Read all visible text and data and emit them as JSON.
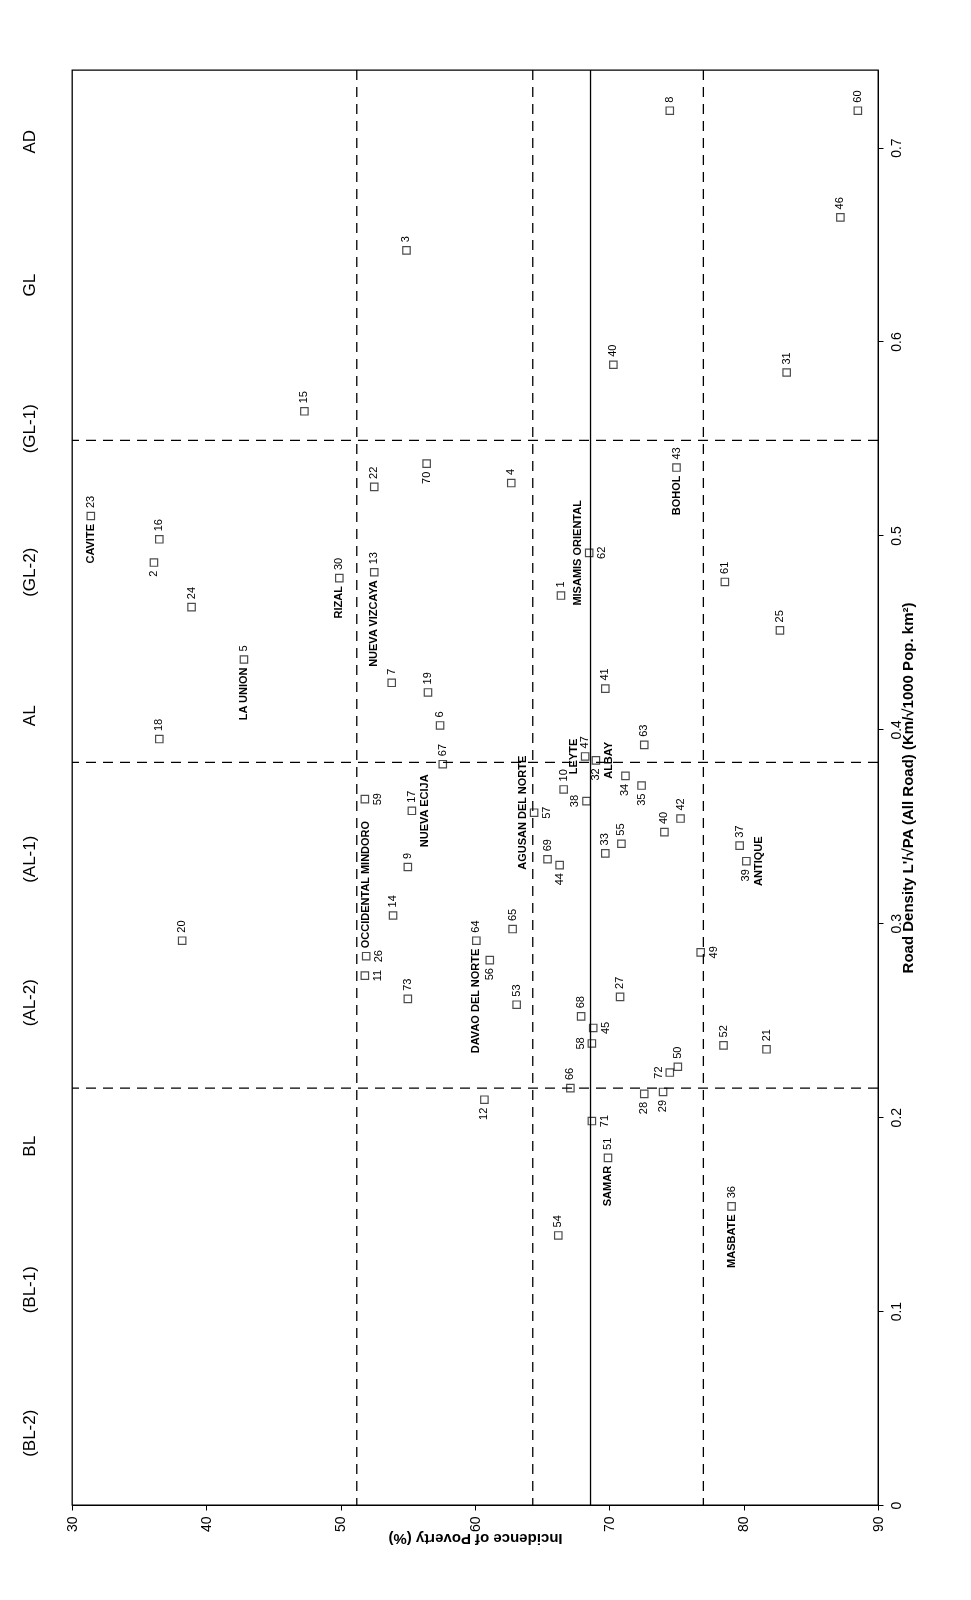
{
  "chart_data": {
    "type": "scatter",
    "xlabel": "Incidence of Poverty (%)",
    "ylabel": "Road Density L'/√PA (All Road) (Km/√1000 Pop. km²)",
    "xlim": [
      30,
      90
    ],
    "xticks": [
      30,
      40,
      50,
      60,
      70,
      80,
      90
    ],
    "ylim": [
      0,
      0.74
    ],
    "yticks": [
      0,
      0.1,
      0.2,
      0.3,
      0.4,
      0.5,
      0.6,
      0.7
    ],
    "marker": "square",
    "series": [
      {
        "color": "#000000",
        "x": [
          66.4,
          36.1,
          54.9,
          62.7,
          42.8,
          57.4,
          53.8,
          74.5,
          55.0,
          66.6,
          51.8,
          60.7,
          52.5,
          53.9,
          47.3,
          36.5,
          55.3,
          36.5,
          56.5,
          38.2,
          81.7,
          52.5,
          31.4,
          38.9,
          82.7,
          51.9,
          70.8,
          72.6,
          74.0,
          49.9,
          83.2,
          69.0,
          69.7,
          71.2,
          72.4,
          79.1,
          79.7,
          68.3,
          80.2,
          70.3,
          74.1,
          69.7,
          75.3,
          75.0,
          66.3,
          68.8,
          87.2,
          68.2,
          76.8,
          75.1,
          69.9,
          78.5,
          63.1,
          66.2,
          70.9,
          61.1,
          64.4,
          68.7,
          51.8,
          88.5,
          78.6,
          68.5,
          72.6,
          60.1,
          62.8,
          67.1,
          57.6,
          67.9,
          65.4,
          56.4,
          68.7,
          74.5,
          55.0
        ],
        "values": [
          0.469,
          0.486,
          0.647,
          0.527,
          0.436,
          0.402,
          0.424,
          0.719,
          0.329,
          0.369,
          0.273,
          0.209,
          0.481,
          0.304,
          0.564,
          0.498,
          0.358,
          0.395,
          0.419,
          0.291,
          0.235,
          0.525,
          0.51,
          0.463,
          0.451,
          0.283,
          0.262,
          0.212,
          0.213,
          0.478,
          0.584,
          0.384,
          0.336,
          0.376,
          0.371,
          0.154,
          0.34,
          0.363,
          0.332,
          0.588,
          0.347,
          0.421,
          0.354,
          0.535,
          0.33,
          0.246,
          0.664,
          0.386,
          0.285,
          0.226,
          0.179,
          0.237,
          0.258,
          0.139,
          0.341,
          0.281,
          0.357,
          0.238,
          0.364,
          0.719,
          0.476,
          0.491,
          0.392,
          0.291,
          0.297,
          0.215,
          0.382,
          0.252,
          0.333,
          0.537,
          0.198,
          0.223,
          0.261
        ]
      }
    ],
    "ref_lines": [
      {
        "axis": "x",
        "value": 51.2,
        "line_style": "dashed"
      },
      {
        "axis": "x",
        "value": 64.3,
        "line_style": "dashed"
      },
      {
        "axis": "x",
        "value": 77.0,
        "line_style": "dashed"
      },
      {
        "axis": "x",
        "value": 68.6,
        "line_style": "solid"
      },
      {
        "axis": "y",
        "value": 0.215,
        "line_style": "dashed"
      },
      {
        "axis": "y",
        "value": 0.383,
        "line_style": "dashed"
      },
      {
        "axis": "y",
        "value": 0.549,
        "line_style": "dashed"
      }
    ],
    "annotations": [
      "AD",
      "GL",
      "(GL-1)",
      "(GL-2)",
      "AL",
      "(AL-1)",
      "(AL-2)",
      "BL",
      "(BL-1)",
      "(BL-2)",
      {
        "text": "1",
        "x": 66.4,
        "y": 0.469
      },
      {
        "text": "2",
        "x": 36.1,
        "y": 0.486
      },
      {
        "text": "3",
        "x": 54.9,
        "y": 0.647
      },
      {
        "text": "4",
        "x": 62.7,
        "y": 0.527
      },
      {
        "text": "5",
        "x": 42.8,
        "y": 0.436
      },
      {
        "text": "6",
        "x": 57.4,
        "y": 0.402
      },
      {
        "text": "7",
        "x": 53.8,
        "y": 0.424
      },
      {
        "text": "8",
        "x": 74.5,
        "y": 0.719
      },
      {
        "text": "9",
        "x": 55.0,
        "y": 0.329
      },
      {
        "text": "10",
        "x": 66.6,
        "y": 0.369
      },
      {
        "text": "11",
        "x": 51.8,
        "y": 0.273
      },
      {
        "text": "12",
        "x": 60.7,
        "y": 0.209
      },
      {
        "text": "13",
        "x": 52.5,
        "y": 0.481
      },
      {
        "text": "14",
        "x": 53.9,
        "y": 0.304
      },
      {
        "text": "15",
        "x": 47.3,
        "y": 0.564
      },
      {
        "text": "16",
        "x": 36.5,
        "y": 0.498
      },
      {
        "text": "17",
        "x": 55.3,
        "y": 0.358
      },
      {
        "text": "18",
        "x": 36.5,
        "y": 0.395
      },
      {
        "text": "19",
        "x": 56.5,
        "y": 0.419
      },
      {
        "text": "20",
        "x": 38.2,
        "y": 0.291
      },
      {
        "text": "21",
        "x": 81.7,
        "y": 0.235
      },
      {
        "text": "22",
        "x": 52.5,
        "y": 0.525
      },
      {
        "text": "23",
        "x": 31.4,
        "y": 0.51
      },
      {
        "text": "24",
        "x": 38.9,
        "y": 0.463
      },
      {
        "text": "25",
        "x": 82.7,
        "y": 0.451
      },
      {
        "text": "26",
        "x": 51.9,
        "y": 0.283
      },
      {
        "text": "27",
        "x": 70.8,
        "y": 0.262
      },
      {
        "text": "28",
        "x": 72.6,
        "y": 0.212
      },
      {
        "text": "29",
        "x": 74.0,
        "y": 0.213
      },
      {
        "text": "30",
        "x": 49.9,
        "y": 0.478
      },
      {
        "text": "31",
        "x": 83.2,
        "y": 0.584
      },
      {
        "text": "32",
        "x": 69.0,
        "y": 0.384
      },
      {
        "text": "33",
        "x": 69.7,
        "y": 0.336
      },
      {
        "text": "34",
        "x": 71.2,
        "y": 0.376
      },
      {
        "text": "35",
        "x": 72.4,
        "y": 0.371
      },
      {
        "text": "36",
        "x": 79.1,
        "y": 0.154
      },
      {
        "text": "37",
        "x": 79.7,
        "y": 0.34
      },
      {
        "text": "38",
        "x": 68.3,
        "y": 0.363
      },
      {
        "text": "39",
        "x": 80.2,
        "y": 0.332
      },
      {
        "text": "40",
        "x": 70.3,
        "y": 0.588
      },
      {
        "text": "40",
        "x": 74.1,
        "y": 0.347
      },
      {
        "text": "41",
        "x": 69.7,
        "y": 0.421
      },
      {
        "text": "42",
        "x": 75.3,
        "y": 0.354
      },
      {
        "text": "43",
        "x": 75.0,
        "y": 0.535
      },
      {
        "text": "44",
        "x": 66.3,
        "y": 0.33
      },
      {
        "text": "45",
        "x": 68.8,
        "y": 0.246
      },
      {
        "text": "46",
        "x": 87.2,
        "y": 0.664
      },
      {
        "text": "47",
        "x": 68.2,
        "y": 0.386
      },
      {
        "text": "49",
        "x": 76.8,
        "y": 0.285
      },
      {
        "text": "50",
        "x": 75.1,
        "y": 0.226
      },
      {
        "text": "51",
        "x": 69.9,
        "y": 0.179
      },
      {
        "text": "52",
        "x": 78.5,
        "y": 0.237
      },
      {
        "text": "53",
        "x": 63.1,
        "y": 0.258
      },
      {
        "text": "54",
        "x": 66.2,
        "y": 0.139
      },
      {
        "text": "55",
        "x": 70.9,
        "y": 0.341
      },
      {
        "text": "56",
        "x": 61.1,
        "y": 0.281
      },
      {
        "text": "57",
        "x": 64.4,
        "y": 0.357
      },
      {
        "text": "58",
        "x": 68.7,
        "y": 0.238
      },
      {
        "text": "59",
        "x": 51.8,
        "y": 0.364
      },
      {
        "text": "60",
        "x": 88.5,
        "y": 0.719
      },
      {
        "text": "61",
        "x": 78.6,
        "y": 0.476
      },
      {
        "text": "62",
        "x": 68.5,
        "y": 0.491
      },
      {
        "text": "63",
        "x": 72.6,
        "y": 0.392
      },
      {
        "text": "64",
        "x": 60.1,
        "y": 0.291
      },
      {
        "text": "65",
        "x": 62.8,
        "y": 0.297
      },
      {
        "text": "66",
        "x": 67.1,
        "y": 0.215
      },
      {
        "text": "67",
        "x": 57.6,
        "y": 0.382
      },
      {
        "text": "68",
        "x": 67.9,
        "y": 0.252
      },
      {
        "text": "69",
        "x": 65.4,
        "y": 0.333
      },
      {
        "text": "70",
        "x": 56.4,
        "y": 0.537
      },
      {
        "text": "71",
        "x": 68.7,
        "y": 0.198
      },
      {
        "text": "72",
        "x": 74.5,
        "y": 0.223
      },
      {
        "text": "73",
        "x": 55.0,
        "y": 0.261
      },
      {
        "text": "CAVITE",
        "x": 31.4,
        "y": 0.51
      },
      {
        "text": "RIZAL",
        "x": 49.9,
        "y": 0.478
      },
      {
        "text": "NUEVA VIZCAYA",
        "x": 52.5,
        "y": 0.481
      },
      {
        "text": "LA UNION",
        "x": 42.8,
        "y": 0.436
      },
      {
        "text": "MISAMIS ORIENTAL",
        "x": 68.5,
        "y": 0.491
      },
      {
        "text": "BOHOL",
        "x": 75.0,
        "y": 0.535
      },
      {
        "text": "AGUSAN DEL NORTE",
        "x": 64.4,
        "y": 0.357
      },
      {
        "text": "LEYTE",
        "x": 68.2,
        "y": 0.386
      },
      {
        "text": "ALBAY",
        "x": 69.0,
        "y": 0.384
      },
      {
        "text": "ANTIQUE",
        "x": 80.2,
        "y": 0.332
      },
      {
        "text": "NUEVA ECIJA",
        "x": 55.3,
        "y": 0.358
      },
      {
        "text": "OCCIDENTAL MINDORO",
        "x": 51.9,
        "y": 0.283
      },
      {
        "text": "DAVAO DEL NORTE",
        "x": 60.1,
        "y": 0.291
      },
      {
        "text": "SAMAR",
        "x": 69.9,
        "y": 0.179
      },
      {
        "text": "MASBATE",
        "x": 79.1,
        "y": 0.154
      }
    ]
  }
}
